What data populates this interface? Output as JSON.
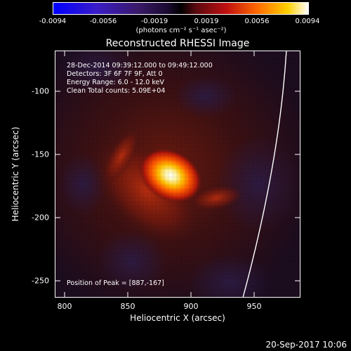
{
  "colorbar": {
    "ticks": [
      "-0.0094",
      "-0.0056",
      "-0.0019",
      "0.0019",
      "0.0056",
      "0.0094"
    ],
    "units": "(photons cm⁻² s⁻¹ asec⁻²)"
  },
  "title": "Reconstructed RHESSI Image",
  "info": {
    "line1": "28-Dec-2014 09:39:12.000 to 09:49:12.000",
    "line2": "Detectors: 3F 6F 7F 9F, Att 0",
    "line3": "Energy Range: 6.0 - 12.0 keV",
    "line4": "Clean     Total counts: 5.09E+04"
  },
  "peak_text": "Position of Peak = [887,-167]",
  "axes": {
    "xlabel": "Heliocentric X (arcsec)",
    "ylabel": "Heliocentric Y (arcsec)",
    "xticks": [
      "800",
      "850",
      "900",
      "950"
    ],
    "yticks": [
      "-100",
      "-150",
      "-200",
      "-250"
    ]
  },
  "footer": "20-Sep-2017 10:06",
  "chart_data": {
    "type": "heatmap",
    "xlim": [
      790,
      985
    ],
    "ylim": [
      -265,
      -70
    ],
    "peak": {
      "x": 887,
      "y": -167
    },
    "colorbar_range": [
      -0.0094,
      0.0094
    ]
  }
}
